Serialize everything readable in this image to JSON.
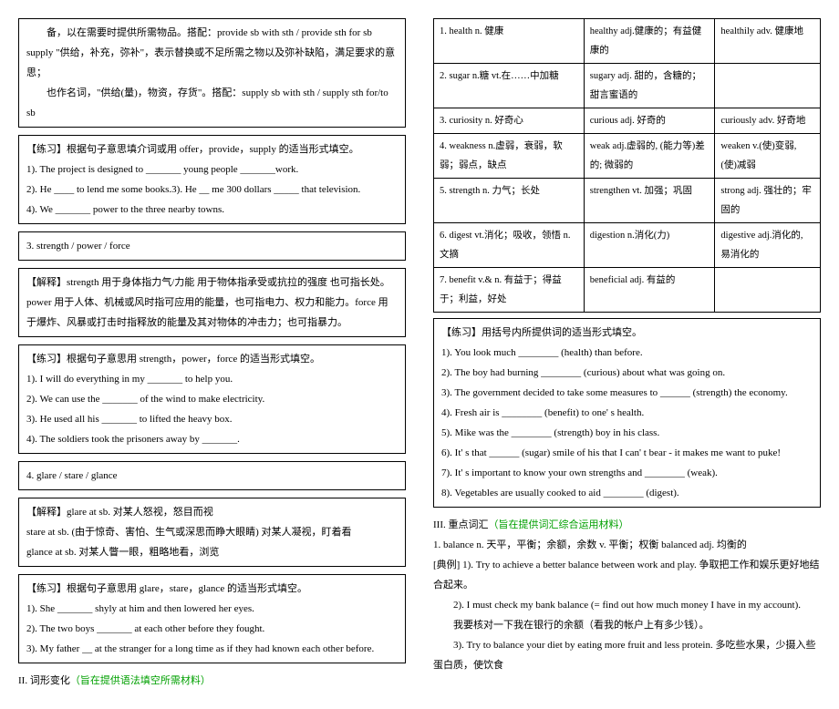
{
  "left": {
    "box1": {
      "l1": "备，以在需要时提供所需物品。搭配：provide sb with sth / provide sth for sb",
      "l2": "supply \"供给，补充，弥补\"，表示替换或不足所需之物以及弥补缺陷，满足要求的意思；",
      "l3": "也作名词，\"供给(量)，物资，存货\"。搭配：supply sb with sth / supply sth for/to sb"
    },
    "ex1": {
      "title": "【练习】根据句子意思填介词或用 offer，provide，supply 的适当形式填空。",
      "l1": "1). The project is designed to _______ young people _______work.",
      "l2": "2). He ____ to lend me some books.3). He __ me 300 dollars _____ that television.",
      "l3": "4). We _______ power to the three nearby towns."
    },
    "box2": "3. strength / power / force",
    "exp2": "【解释】strength 用于身体指力气/力能 用于物体指承受或抗拉的强度 也可指长处。power 用于人体、机械或风时指可应用的能量，也可指电力、权力和能力。force 用于爆炸、风暴或打击时指释放的能量及其对物体的冲击力；也可指暴力。",
    "ex2": {
      "title": "【练习】根据句子意思用 strength，power，force 的适当形式填空。",
      "l1": "1). I will do everything in my _______ to help you.",
      "l2": "2). We can use the _______ of the wind to make electricity.",
      "l3": "3). He used all his _______ to lifted the heavy box.",
      "l4": "4). The soldiers took the prisoners away by _______."
    },
    "box3": "4. glare / stare / glance",
    "exp3": {
      "l1": "【解释】glare at sb. 对某人怒视，怒目而视",
      "l2": "stare at sb. (由于惊奇、害怕、生气或深思而睁大眼睛) 对某人凝视，盯着看",
      "l3": "glance at sb. 对某人瞥一眼，粗略地看，浏览"
    },
    "ex3": {
      "title": "【练习】根据句子意思用 glare，stare，glance 的适当形式填空。",
      "l1": "1). She _______ shyly at him and then lowered her eyes.",
      "l2": "2). The two boys _______ at each other before they fought.",
      "l3": "3). My father __ at the stranger for a long time as if they had known each other before."
    },
    "section2": "II. 词形变化",
    "section2note": "（旨在提供语法填空所需材料）"
  },
  "right": {
    "table": [
      [
        "1. health n.  健康",
        "healthy adj.健康的；有益健康的",
        "healthily adv.  健康地"
      ],
      [
        "2. sugar n.糖  vt.在……中加糖",
        "sugary adj. 甜的，含糖的；甜言蜜语的",
        ""
      ],
      [
        "3. curiosity n.  好奇心",
        "curious adj. 好奇的",
        "curiously adv.  好奇地"
      ],
      [
        "4. weakness n.虚弱，衰弱，软弱；弱点，缺点",
        "weak adj.虚弱的, (能力等)差的; 微弱的",
        "weaken v.(使)变弱, (使)减弱"
      ],
      [
        "5. strength n.  力气；长处",
        "strengthen vt.  加强；巩固",
        "strong adj.  强壮的；牢固的"
      ],
      [
        "6. digest vt.消化；吸收，领悟  n. 文摘",
        "digestion n.消化(力)",
        "digestive adj.消化的, 易消化的"
      ],
      [
        "7. benefit v.& n.  有益于；得益于；利益，好处",
        "beneficial adj.  有益的",
        ""
      ]
    ],
    "ex": {
      "title": "【练习】用括号内所提供词的适当形式填空。",
      "l1": "1). You look much ________ (health) than before.",
      "l2": "2). The boy had burning ________ (curious) about what was going on.",
      "l3": "3). The government decided to take some measures to ______ (strength) the economy.",
      "l4": "4). Fresh air is ________ (benefit) to one' s health.",
      "l5": "5). Mike was the ________ (strength) boy in his class.",
      "l6": "6). It' s that ______ (sugar) smile of his that I can' t bear - it makes me want to puke!",
      "l7": "7). It' s important to know your own strengths and ________ (weak).",
      "l8": "8). Vegetables are usually cooked to aid ________ (digest)."
    },
    "section3": "III. 重点词汇",
    "section3note": "（旨在提供词汇综合运用材料）",
    "vocab": {
      "l1": "1. balance n.  天平，平衡；余额，余数   v.  平衡；权衡     balanced adj. 均衡的",
      "l2": "[典例] 1). Try to achieve a better balance between work and play.  争取把工作和娱乐更好地结合起来。",
      "l3": "2). I must check my bank balance (= find out how much money I have in my account).",
      "l4": "我要核对一下我在银行的余额（看我的帐户上有多少钱）。",
      "l5": "3). Try to balance your diet by eating more fruit and less protein.  多吃些水果，少摄入些蛋白质，使饮食"
    }
  }
}
